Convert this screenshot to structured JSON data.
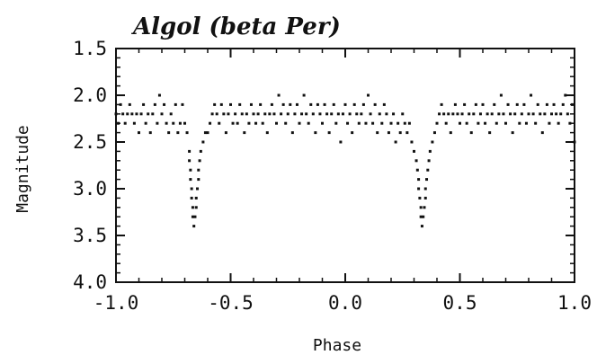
{
  "chart_data": {
    "type": "scatter",
    "title": "Algol (beta Per)",
    "xlabel": "Phase",
    "ylabel": "Magnitude",
    "xlim": [
      -1.0,
      1.0
    ],
    "ylim": [
      1.5,
      4.0
    ],
    "y_inverted": true,
    "grid": false,
    "x_ticks": [
      -1.0,
      -0.5,
      0.0,
      0.5,
      1.0
    ],
    "x_tick_labels": [
      "-1.0",
      "-0.5",
      "0.0",
      "0.5",
      "1.0"
    ],
    "y_ticks": [
      1.5,
      2.0,
      2.5,
      3.0,
      3.5,
      4.0
    ],
    "y_tick_labels": [
      "1.5",
      "2.0",
      "2.5",
      "3.0",
      "3.5",
      "4.0"
    ],
    "x_minor_step": 0.1,
    "y_minor_step": 0.1,
    "point_color": "#111111",
    "series": [
      {
        "points": [
          [
            -1.0,
            2.2
          ],
          [
            -0.99,
            2.3
          ],
          [
            -0.98,
            2.1
          ],
          [
            -0.97,
            2.2
          ],
          [
            -0.96,
            2.3
          ],
          [
            -0.95,
            2.2
          ],
          [
            -0.94,
            2.1
          ],
          [
            -0.93,
            2.2
          ],
          [
            -0.92,
            2.3
          ],
          [
            -0.91,
            2.2
          ],
          [
            -0.9,
            2.4
          ],
          [
            -0.89,
            2.2
          ],
          [
            -0.88,
            2.1
          ],
          [
            -0.87,
            2.3
          ],
          [
            -0.86,
            2.2
          ],
          [
            -0.85,
            2.4
          ],
          [
            -0.84,
            2.2
          ],
          [
            -0.83,
            2.1
          ],
          [
            -0.82,
            2.3
          ],
          [
            -0.81,
            2.0
          ],
          [
            -0.8,
            2.2
          ],
          [
            -0.79,
            2.1
          ],
          [
            -0.78,
            2.3
          ],
          [
            -0.77,
            2.4
          ],
          [
            -0.76,
            2.2
          ],
          [
            -0.75,
            2.3
          ],
          [
            -0.74,
            2.1
          ],
          [
            -0.73,
            2.4
          ],
          [
            -0.72,
            2.3
          ],
          [
            -0.71,
            2.1
          ],
          [
            -0.7,
            2.3
          ],
          [
            -0.69,
            2.4
          ],
          [
            -0.68,
            2.6
          ],
          [
            -0.68,
            2.7
          ],
          [
            -0.675,
            2.8
          ],
          [
            -0.675,
            2.9
          ],
          [
            -0.67,
            3.0
          ],
          [
            -0.67,
            3.1
          ],
          [
            -0.665,
            3.2
          ],
          [
            -0.665,
            3.3
          ],
          [
            -0.66,
            3.4
          ],
          [
            -0.655,
            3.3
          ],
          [
            -0.65,
            3.2
          ],
          [
            -0.65,
            3.1
          ],
          [
            -0.645,
            3.0
          ],
          [
            -0.64,
            2.9
          ],
          [
            -0.64,
            2.8
          ],
          [
            -0.635,
            2.7
          ],
          [
            -0.63,
            2.6
          ],
          [
            -0.62,
            2.5
          ],
          [
            -0.61,
            2.4
          ],
          [
            -0.6,
            2.4
          ],
          [
            -0.59,
            2.3
          ],
          [
            -0.58,
            2.2
          ],
          [
            -0.57,
            2.1
          ],
          [
            -0.56,
            2.2
          ],
          [
            -0.55,
            2.3
          ],
          [
            -0.54,
            2.1
          ],
          [
            -0.53,
            2.2
          ],
          [
            -0.52,
            2.4
          ],
          [
            -0.51,
            2.2
          ],
          [
            -0.5,
            2.1
          ],
          [
            -0.49,
            2.3
          ],
          [
            -0.48,
            2.2
          ],
          [
            -0.47,
            2.3
          ],
          [
            -0.46,
            2.1
          ],
          [
            -0.45,
            2.2
          ],
          [
            -0.44,
            2.4
          ],
          [
            -0.43,
            2.2
          ],
          [
            -0.42,
            2.3
          ],
          [
            -0.41,
            2.1
          ],
          [
            -0.4,
            2.2
          ],
          [
            -0.39,
            2.3
          ],
          [
            -0.38,
            2.2
          ],
          [
            -0.37,
            2.1
          ],
          [
            -0.36,
            2.3
          ],
          [
            -0.35,
            2.2
          ],
          [
            -0.34,
            2.4
          ],
          [
            -0.33,
            2.2
          ],
          [
            -0.32,
            2.1
          ],
          [
            -0.31,
            2.2
          ],
          [
            -0.3,
            2.3
          ],
          [
            -0.29,
            2.0
          ],
          [
            -0.28,
            2.2
          ],
          [
            -0.27,
            2.1
          ],
          [
            -0.26,
            2.3
          ],
          [
            -0.25,
            2.2
          ],
          [
            -0.24,
            2.1
          ],
          [
            -0.23,
            2.4
          ],
          [
            -0.22,
            2.2
          ],
          [
            -0.21,
            2.1
          ],
          [
            -0.2,
            2.3
          ],
          [
            -0.19,
            2.2
          ],
          [
            -0.18,
            2.0
          ],
          [
            -0.17,
            2.2
          ],
          [
            -0.16,
            2.3
          ],
          [
            -0.15,
            2.1
          ],
          [
            -0.14,
            2.2
          ],
          [
            -0.13,
            2.4
          ],
          [
            -0.12,
            2.1
          ],
          [
            -0.11,
            2.2
          ],
          [
            -0.1,
            2.3
          ],
          [
            -0.09,
            2.1
          ],
          [
            -0.08,
            2.2
          ],
          [
            -0.07,
            2.4
          ],
          [
            -0.06,
            2.2
          ],
          [
            -0.05,
            2.1
          ],
          [
            -0.04,
            2.3
          ],
          [
            -0.03,
            2.2
          ],
          [
            -0.02,
            2.5
          ],
          [
            -0.01,
            2.2
          ],
          [
            0.0,
            2.1
          ],
          [
            0.01,
            2.3
          ],
          [
            0.02,
            2.2
          ],
          [
            0.03,
            2.4
          ],
          [
            0.04,
            2.1
          ],
          [
            0.05,
            2.2
          ],
          [
            0.06,
            2.3
          ],
          [
            0.07,
            2.2
          ],
          [
            0.08,
            2.1
          ],
          [
            0.09,
            2.3
          ],
          [
            0.1,
            2.0
          ],
          [
            0.11,
            2.2
          ],
          [
            0.12,
            2.3
          ],
          [
            0.13,
            2.1
          ],
          [
            0.14,
            2.4
          ],
          [
            0.15,
            2.2
          ],
          [
            0.16,
            2.3
          ],
          [
            0.17,
            2.1
          ],
          [
            0.18,
            2.2
          ],
          [
            0.19,
            2.4
          ],
          [
            0.2,
            2.3
          ],
          [
            0.21,
            2.2
          ],
          [
            0.22,
            2.5
          ],
          [
            0.23,
            2.3
          ],
          [
            0.24,
            2.4
          ],
          [
            0.25,
            2.2
          ],
          [
            0.26,
            2.3
          ],
          [
            0.27,
            2.4
          ],
          [
            0.28,
            2.3
          ],
          [
            0.29,
            2.5
          ],
          [
            0.3,
            2.6
          ],
          [
            0.31,
            2.7
          ],
          [
            0.315,
            2.8
          ],
          [
            0.32,
            2.9
          ],
          [
            0.32,
            3.0
          ],
          [
            0.325,
            3.1
          ],
          [
            0.33,
            3.2
          ],
          [
            0.33,
            3.3
          ],
          [
            0.335,
            3.4
          ],
          [
            0.34,
            3.3
          ],
          [
            0.345,
            3.2
          ],
          [
            0.35,
            3.1
          ],
          [
            0.35,
            3.0
          ],
          [
            0.355,
            2.9
          ],
          [
            0.36,
            2.8
          ],
          [
            0.365,
            2.7
          ],
          [
            0.37,
            2.6
          ],
          [
            0.38,
            2.5
          ],
          [
            0.39,
            2.4
          ],
          [
            0.4,
            2.3
          ],
          [
            0.41,
            2.2
          ],
          [
            0.42,
            2.1
          ],
          [
            0.43,
            2.2
          ],
          [
            0.44,
            2.3
          ],
          [
            0.45,
            2.2
          ],
          [
            0.46,
            2.4
          ],
          [
            0.47,
            2.2
          ],
          [
            0.48,
            2.1
          ],
          [
            0.49,
            2.2
          ],
          [
            0.5,
            2.3
          ],
          [
            0.51,
            2.2
          ],
          [
            0.52,
            2.1
          ],
          [
            0.53,
            2.3
          ],
          [
            0.54,
            2.2
          ],
          [
            0.55,
            2.4
          ],
          [
            0.56,
            2.2
          ],
          [
            0.57,
            2.1
          ],
          [
            0.58,
            2.3
          ],
          [
            0.59,
            2.2
          ],
          [
            0.6,
            2.1
          ],
          [
            0.61,
            2.3
          ],
          [
            0.62,
            2.2
          ],
          [
            0.63,
            2.4
          ],
          [
            0.64,
            2.2
          ],
          [
            0.65,
            2.1
          ],
          [
            0.66,
            2.3
          ],
          [
            0.67,
            2.2
          ],
          [
            0.68,
            2.0
          ],
          [
            0.69,
            2.2
          ],
          [
            0.7,
            2.3
          ],
          [
            0.71,
            2.1
          ],
          [
            0.72,
            2.2
          ],
          [
            0.73,
            2.4
          ],
          [
            0.74,
            2.2
          ],
          [
            0.75,
            2.1
          ],
          [
            0.76,
            2.3
          ],
          [
            0.77,
            2.2
          ],
          [
            0.78,
            2.1
          ],
          [
            0.79,
            2.3
          ],
          [
            0.8,
            2.2
          ],
          [
            0.81,
            2.0
          ],
          [
            0.82,
            2.2
          ],
          [
            0.83,
            2.3
          ],
          [
            0.84,
            2.1
          ],
          [
            0.85,
            2.2
          ],
          [
            0.86,
            2.4
          ],
          [
            0.87,
            2.2
          ],
          [
            0.88,
            2.1
          ],
          [
            0.89,
            2.3
          ],
          [
            0.9,
            2.2
          ],
          [
            0.91,
            2.1
          ],
          [
            0.92,
            2.2
          ],
          [
            0.93,
            2.3
          ],
          [
            0.94,
            2.2
          ],
          [
            0.95,
            2.1
          ],
          [
            0.96,
            2.0
          ],
          [
            0.97,
            2.2
          ],
          [
            0.98,
            2.3
          ],
          [
            0.99,
            2.1
          ],
          [
            1.0,
            2.5
          ]
        ]
      }
    ]
  }
}
